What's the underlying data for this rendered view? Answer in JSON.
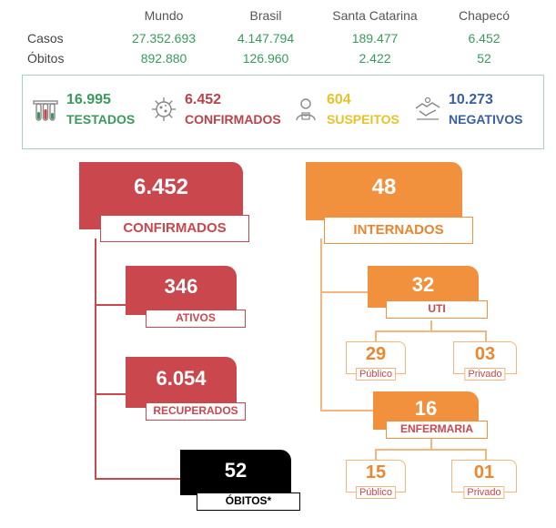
{
  "stats": {
    "columns": [
      "Mundo",
      "Brasil",
      "Santa Catarina",
      "Chapecó"
    ],
    "rows": [
      {
        "label": "Casos",
        "values": [
          "27.352.693",
          "4.147.794",
          "189.477",
          "6.452"
        ]
      },
      {
        "label": "Óbitos",
        "values": [
          "892.880",
          "126.960",
          "2.422",
          "52"
        ]
      }
    ]
  },
  "summary": {
    "testados": {
      "value": "16.995",
      "label": "TESTADOS",
      "icon": "test-tubes-icon",
      "color": "#3a9a5b"
    },
    "confirmados": {
      "value": "6.452",
      "label": "CONFIRMADOS",
      "icon": "virus-icon",
      "color": "#b8434a"
    },
    "suspeitos": {
      "value": "604",
      "label": "SUSPEITOS",
      "icon": "suspect-person-icon",
      "color": "#e8c22a"
    },
    "negativos": {
      "value": "10.273",
      "label": "NEGATIVOS",
      "icon": "handshake-icon",
      "color": "#3a5fa0"
    }
  },
  "confirmed_branch": {
    "confirmados": {
      "value": "6.452",
      "label": "CONFIRMADOS"
    },
    "ativos": {
      "value": "346",
      "label": "ATIVOS"
    },
    "recuperados": {
      "value": "6.054",
      "label": "RECUPERADOS"
    },
    "obitos": {
      "value": "52",
      "label": "ÓBITOS*"
    }
  },
  "hospital_branch": {
    "internados": {
      "value": "48",
      "label": "INTERNADOS"
    },
    "uti": {
      "value": "32",
      "label": "UTI",
      "publico": {
        "value": "29",
        "label": "Público"
      },
      "privado": {
        "value": "03",
        "label": "Privado"
      }
    },
    "enfermaria": {
      "value": "16",
      "label": "ENFERMARIA",
      "publico": {
        "value": "15",
        "label": "Público"
      },
      "privado": {
        "value": "01",
        "label": "Privado"
      }
    }
  },
  "colors": {
    "red": "#c9474d",
    "orange": "#f2913d",
    "green": "#3a9a5b",
    "black": "#000000"
  }
}
